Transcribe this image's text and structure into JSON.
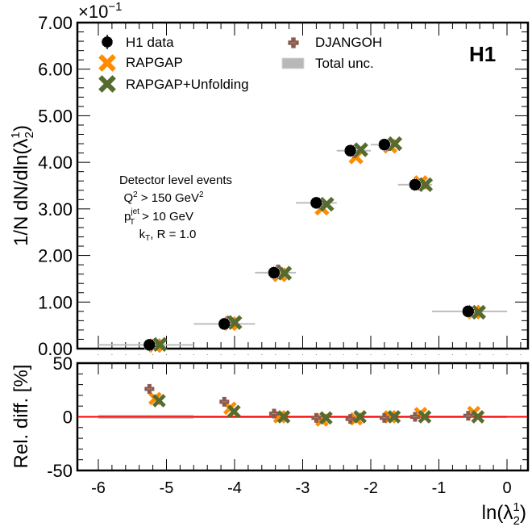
{
  "chart_data": [
    {
      "type": "scatter",
      "panel": "main",
      "ylabel": "1/N dN/dln(λ",
      "ylabel_sup": "1",
      "ylabel_sub": "2",
      "ylabel_end": ")",
      "y_multiplier_base": "×10",
      "y_multiplier_exp": "−1",
      "ylim": [
        0,
        7
      ],
      "xlim": [
        -6.3,
        0.3
      ],
      "yticks": [
        0,
        1,
        2,
        3,
        4,
        5,
        6,
        7
      ],
      "ytick_labels": [
        "0.00",
        "1.00",
        "2.00",
        "3.00",
        "4.00",
        "5.00",
        "6.00",
        "7.00"
      ],
      "experiment_label": "H1",
      "annotation": {
        "line1": "Detector level events",
        "line2_base": "Q",
        "line2_sup": "2",
        "line2_rest": " > 150 GeV",
        "line2_sup2": "2",
        "line3_base": "p",
        "line3_sub": "T",
        "line3_sup": "jet",
        "line3_rest": " > 10 GeV",
        "line4_base": "k",
        "line4_sub": "T",
        "line4_rest": ", R = 1.0"
      },
      "legend": {
        "placement": "top",
        "entries": [
          {
            "name": "H1 data",
            "marker": "circle",
            "color": "#000000"
          },
          {
            "name": "RAPGAP",
            "marker": "x-cross",
            "color": "#ff8c00"
          },
          {
            "name": "RAPGAP+Unfolding",
            "marker": "x-cross",
            "color": "#556b2f"
          },
          {
            "name": "DJANGOH",
            "marker": "plus-cross",
            "color": "#8b5a4f"
          },
          {
            "name": "Total unc.",
            "marker": "box",
            "color": "#b8b8b8"
          }
        ]
      },
      "bins": [
        [
          -6.0,
          -4.6
        ],
        [
          -4.6,
          -3.7
        ],
        [
          -3.7,
          -3.1
        ],
        [
          -3.1,
          -2.5
        ],
        [
          -2.5,
          -2.0
        ],
        [
          -2.0,
          -1.6
        ],
        [
          -1.6,
          -1.1
        ],
        [
          -1.1,
          0.0
        ]
      ],
      "x": [
        -5.25,
        -4.15,
        -3.42,
        -2.8,
        -2.3,
        -1.8,
        -1.35,
        -0.57
      ],
      "series": [
        {
          "name": "H1 data",
          "values": [
            0.08,
            0.53,
            1.63,
            3.13,
            4.25,
            4.38,
            3.52,
            0.8
          ]
        },
        {
          "name": "RAPGAP",
          "values": [
            0.1,
            0.57,
            1.62,
            3.05,
            4.15,
            4.38,
            3.6,
            0.82
          ]
        },
        {
          "name": "RAPGAP+Unfolding",
          "values": [
            0.09,
            0.56,
            1.62,
            3.1,
            4.27,
            4.4,
            3.52,
            0.78
          ]
        },
        {
          "name": "DJANGOH",
          "values": [
            0.1,
            0.6,
            1.7,
            3.1,
            4.2,
            4.35,
            3.5,
            0.8
          ]
        }
      ]
    },
    {
      "type": "scatter",
      "panel": "ratio",
      "ylabel": "Rel. diff. [%]",
      "xlabel_base": "ln(λ",
      "xlabel_sup": "1",
      "xlabel_sub": "2",
      "xlabel_end": ")",
      "ylim": [
        -50,
        50
      ],
      "xlim": [
        -6.3,
        0.3
      ],
      "yticks": [
        -50,
        0,
        50
      ],
      "ytick_labels": [
        "-50",
        "0",
        "50"
      ],
      "xticks": [
        -6,
        -5,
        -4,
        -3,
        -2,
        -1,
        0
      ],
      "xtick_labels": [
        "-6",
        "-5",
        "-4",
        "-3",
        "-2",
        "-1",
        "0"
      ],
      "reference_line": {
        "value": 0,
        "color": "#ff0000"
      },
      "x": [
        -5.25,
        -4.15,
        -3.42,
        -2.8,
        -2.3,
        -1.8,
        -1.35,
        -0.57
      ],
      "series": [
        {
          "name": "DJANGOH",
          "values": [
            26,
            14,
            3,
            -1,
            -2,
            -1,
            0,
            1
          ]
        },
        {
          "name": "RAPGAP",
          "values": [
            17,
            8,
            0,
            -3,
            -2,
            0,
            3,
            4
          ]
        },
        {
          "name": "RAPGAP+Unfolding",
          "values": [
            15,
            5,
            0,
            -1,
            0,
            0,
            0,
            0
          ]
        }
      ]
    }
  ]
}
